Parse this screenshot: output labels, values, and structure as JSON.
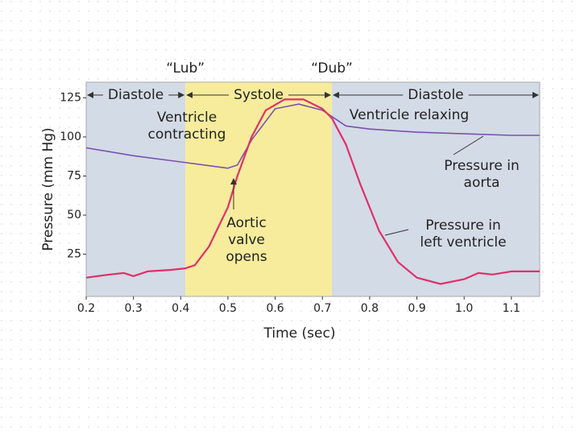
{
  "chart_data": {
    "type": "line",
    "xlabel": "Time (sec)",
    "ylabel": "Pressure (mm Hg)",
    "xlim": [
      0.2,
      1.16
    ],
    "ylim": [
      -2,
      135
    ],
    "xticks": [
      0.2,
      0.3,
      0.4,
      0.5,
      0.6,
      0.7,
      0.8,
      0.9,
      {
        "value": 1,
        "label": "1.0"
      },
      1.1
    ],
    "yticks": [
      25,
      50,
      75,
      100,
      125
    ],
    "phases": [
      {
        "label": "Diastole",
        "start": 0.2,
        "end": 0.41,
        "color": "#d3dbe6"
      },
      {
        "label": "Systole",
        "start": 0.41,
        "end": 0.72,
        "color": "#f6ec9c",
        "sound": "“Lub”"
      },
      {
        "label": "Diastole",
        "start": 0.72,
        "end": 1.16,
        "color": "#d3dbe6",
        "sound": "“Dub”"
      }
    ],
    "series": [
      {
        "name": "Pressure in aorta",
        "color": "#7a52b0",
        "x": [
          0.2,
          0.3,
          0.4,
          0.5,
          0.52,
          0.55,
          0.6,
          0.65,
          0.7,
          0.72,
          0.75,
          0.8,
          0.9,
          1.0,
          1.1,
          1.16
        ],
        "values": [
          93,
          88,
          84,
          80,
          82,
          98,
          118,
          121,
          117,
          113,
          107,
          105,
          103,
          102,
          101,
          101
        ]
      },
      {
        "name": "Pressure in left ventricle",
        "color": "#e0306a",
        "x": [
          0.2,
          0.25,
          0.28,
          0.3,
          0.33,
          0.38,
          0.41,
          0.43,
          0.46,
          0.5,
          0.52,
          0.55,
          0.58,
          0.62,
          0.66,
          0.7,
          0.72,
          0.75,
          0.78,
          0.82,
          0.86,
          0.9,
          0.95,
          1.0,
          1.03,
          1.06,
          1.1,
          1.16
        ],
        "values": [
          10,
          12,
          13,
          11,
          14,
          15,
          16,
          18,
          30,
          55,
          75,
          100,
          117,
          124,
          124,
          118,
          112,
          95,
          70,
          40,
          20,
          10,
          6,
          9,
          13,
          12,
          14,
          14
        ]
      }
    ],
    "annotations": [
      {
        "lines": [
          "Ventricle",
          "contracting"
        ]
      },
      {
        "lines": [
          "Ventricle relaxing"
        ]
      },
      {
        "lines": [
          "Pressure in",
          "aorta"
        ]
      },
      {
        "lines": [
          "Aortic",
          "valve",
          "opens"
        ]
      },
      {
        "lines": [
          "Pressure in",
          "left ventricle"
        ]
      }
    ]
  }
}
